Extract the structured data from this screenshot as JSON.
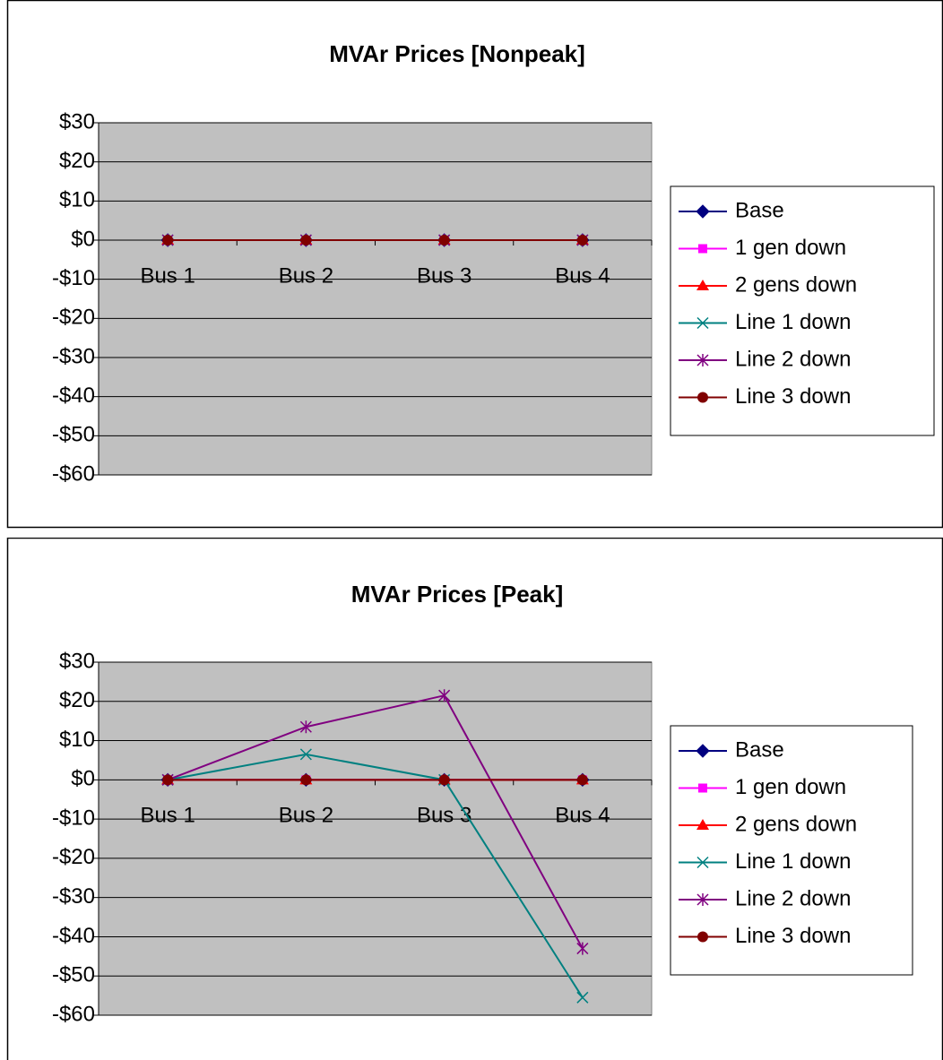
{
  "chart_data": [
    {
      "type": "line",
      "title": "MVAr Prices [Nonpeak]",
      "categories": [
        "Bus 1",
        "Bus 2",
        "Bus 3",
        "Bus 4"
      ],
      "ylim": [
        -60,
        30
      ],
      "yticks": [
        {
          "value": 30,
          "label": "$30"
        },
        {
          "value": 20,
          "label": "$20"
        },
        {
          "value": 10,
          "label": "$10"
        },
        {
          "value": 0,
          "label": "$0"
        },
        {
          "value": -10,
          "label": "-$10"
        },
        {
          "value": -20,
          "label": "-$20"
        },
        {
          "value": -30,
          "label": "-$30"
        },
        {
          "value": -40,
          "label": "-$40"
        },
        {
          "value": -50,
          "label": "-$50"
        },
        {
          "value": -60,
          "label": "-$60"
        }
      ],
      "grid": true,
      "legend": "right",
      "series": [
        {
          "name": "Base",
          "color": "#000080",
          "marker": "diamond",
          "values": [
            0,
            0,
            0,
            0
          ]
        },
        {
          "name": "1 gen down",
          "color": "#ff00ff",
          "marker": "square",
          "values": [
            0,
            0,
            0,
            0
          ]
        },
        {
          "name": "2 gens down",
          "color": "#ff0000",
          "marker": "triangle",
          "values": [
            0,
            0,
            0,
            0
          ]
        },
        {
          "name": "Line 1 down",
          "color": "#008080",
          "marker": "x",
          "values": [
            0,
            0,
            0,
            0
          ]
        },
        {
          "name": "Line 2 down",
          "color": "#800080",
          "marker": "star",
          "values": [
            0,
            0,
            0,
            0
          ]
        },
        {
          "name": "Line 3 down",
          "color": "#800000",
          "marker": "circle",
          "values": [
            0,
            0,
            0,
            0
          ]
        }
      ]
    },
    {
      "type": "line",
      "title": "MVAr Prices [Peak]",
      "categories": [
        "Bus 1",
        "Bus 2",
        "Bus 3",
        "Bus 4"
      ],
      "ylim": [
        -60,
        30
      ],
      "yticks": [
        {
          "value": 30,
          "label": "$30"
        },
        {
          "value": 20,
          "label": "$20"
        },
        {
          "value": 10,
          "label": "$10"
        },
        {
          "value": 0,
          "label": "$0"
        },
        {
          "value": -10,
          "label": "-$10"
        },
        {
          "value": -20,
          "label": "-$20"
        },
        {
          "value": -30,
          "label": "-$30"
        },
        {
          "value": -40,
          "label": "-$40"
        },
        {
          "value": -50,
          "label": "-$50"
        },
        {
          "value": -60,
          "label": "-$60"
        }
      ],
      "grid": true,
      "legend": "right",
      "series": [
        {
          "name": "Base",
          "color": "#000080",
          "marker": "diamond",
          "values": [
            0,
            0,
            0,
            0
          ]
        },
        {
          "name": "1 gen down",
          "color": "#ff00ff",
          "marker": "square",
          "values": [
            0,
            0,
            0,
            0
          ]
        },
        {
          "name": "2 gens down",
          "color": "#ff0000",
          "marker": "triangle",
          "values": [
            0,
            0,
            0,
            0
          ]
        },
        {
          "name": "Line 1 down",
          "color": "#008080",
          "marker": "x",
          "values": [
            0,
            6.5,
            0,
            -55.5
          ]
        },
        {
          "name": "Line 2 down",
          "color": "#800080",
          "marker": "star",
          "values": [
            0,
            13.5,
            21.5,
            -43
          ]
        },
        {
          "name": "Line 3 down",
          "color": "#800000",
          "marker": "circle",
          "values": [
            0,
            0,
            0,
            0
          ]
        }
      ]
    }
  ]
}
